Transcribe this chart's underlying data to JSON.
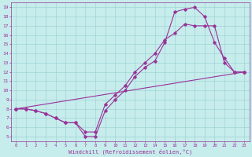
{
  "xlabel": "Windchill (Refroidissement éolien,°C)",
  "xlim": [
    -0.5,
    23.5
  ],
  "ylim": [
    4.5,
    19.5
  ],
  "xticks": [
    0,
    1,
    2,
    3,
    4,
    5,
    6,
    7,
    8,
    9,
    10,
    11,
    12,
    13,
    14,
    15,
    16,
    17,
    18,
    19,
    20,
    21,
    22,
    23
  ],
  "yticks": [
    5,
    6,
    7,
    8,
    9,
    10,
    11,
    12,
    13,
    14,
    15,
    16,
    17,
    18,
    19
  ],
  "bg_color": "#c6ecec",
  "grid_color": "#a0d4d4",
  "line_color": "#993399",
  "line1_x": [
    0,
    1,
    2,
    3,
    4,
    5,
    6,
    7,
    8,
    9,
    10,
    11,
    12,
    13,
    14,
    15,
    16,
    17,
    18,
    19,
    20,
    21,
    22,
    23
  ],
  "line1_y": [
    8,
    8,
    7.8,
    7.5,
    7,
    6.5,
    6.5,
    5,
    5,
    7.8,
    9,
    10,
    11.5,
    12.5,
    13.2,
    15.2,
    18.5,
    18.8,
    19,
    18,
    15.2,
    13.5,
    12,
    12
  ],
  "line2_x": [
    0,
    1,
    2,
    3,
    4,
    5,
    6,
    7,
    8,
    9,
    10,
    11,
    12,
    13,
    14,
    15,
    16,
    17,
    18,
    19,
    20,
    21,
    22,
    23
  ],
  "line2_y": [
    8,
    8,
    7.8,
    7.5,
    7,
    6.5,
    6.5,
    5.5,
    5.5,
    8.5,
    9.5,
    10.5,
    12,
    13,
    14,
    15.5,
    16.2,
    17.2,
    17,
    17,
    17,
    13,
    12,
    12
  ],
  "line3_x": [
    0,
    23
  ],
  "line3_y": [
    8,
    12
  ]
}
